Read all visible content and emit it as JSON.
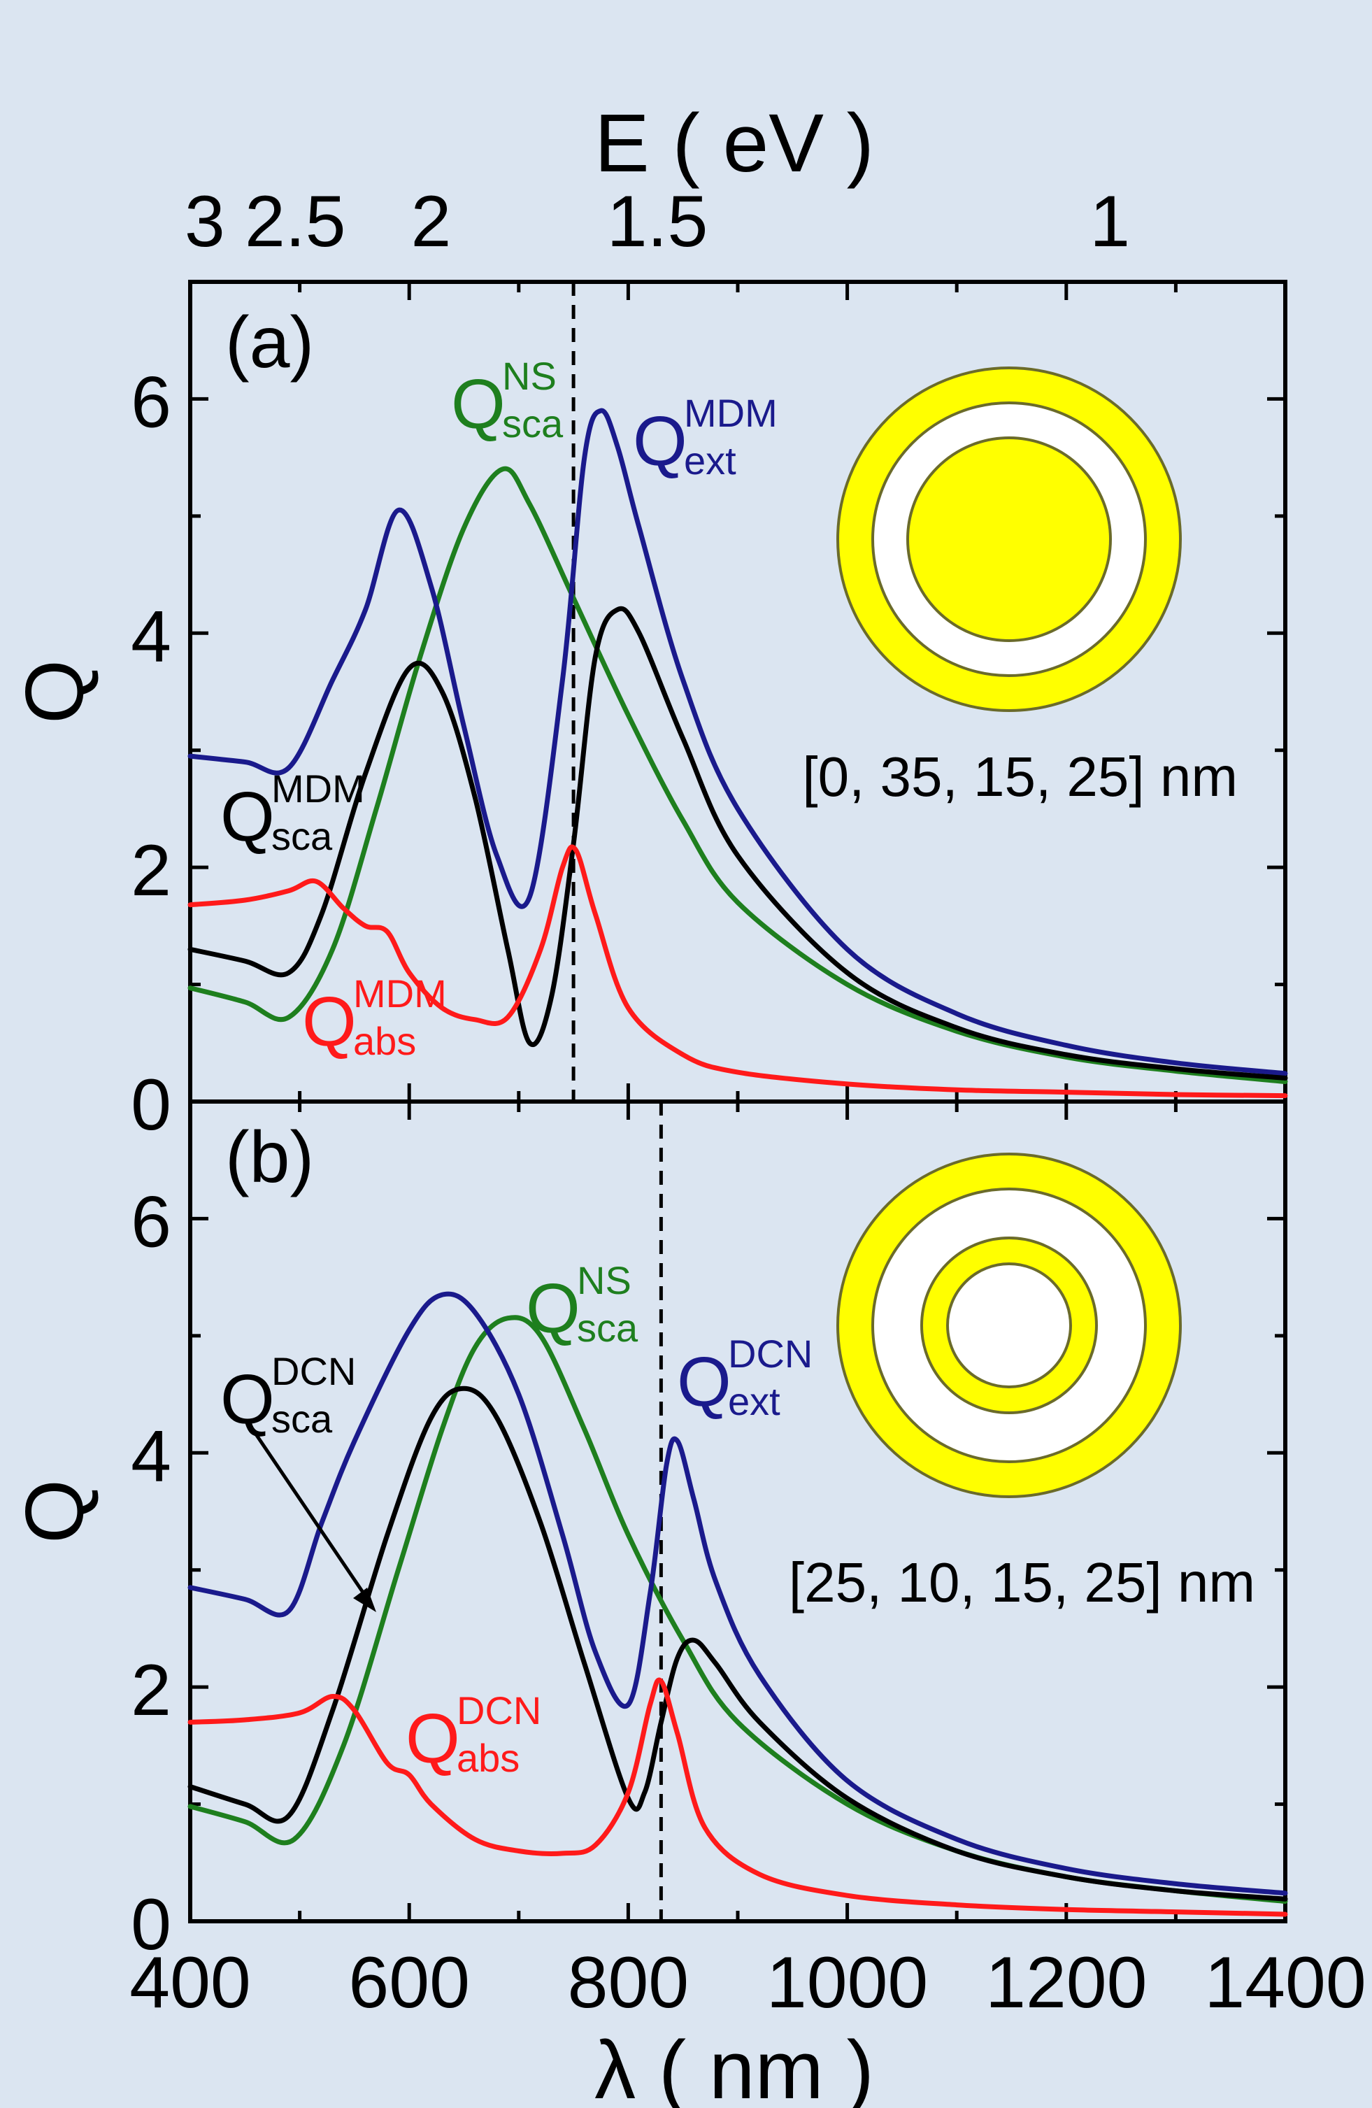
{
  "colors": {
    "background": "#dbe5f1",
    "ext": "#1a1a8c",
    "sca": "#000000",
    "ns": "#1e7f1e",
    "abs": "#ff1a1a",
    "gold": "#ffff00",
    "outline": "#6b6b2a"
  },
  "top_axis": {
    "title": "E ( eV )",
    "ticks": [
      {
        "label": "3",
        "value": 3
      },
      {
        "label": "2.5",
        "value": 2.5
      },
      {
        "label": "2",
        "value": 2
      },
      {
        "label": "1.5",
        "value": 1.5
      },
      {
        "label": "1",
        "value": 1
      }
    ]
  },
  "chart_data": [
    {
      "type": "line",
      "panel_label": "(a)",
      "ylabel": "Q",
      "xlim": [
        400,
        1400
      ],
      "ylim": [
        0,
        7
      ],
      "y_ticks": [
        0,
        2,
        4,
        6
      ],
      "vline": 750,
      "structure": "[0, 35, 15, 25] nm",
      "series": [
        {
          "key": "ext",
          "base": "Q",
          "sup": "MDM",
          "sub": "ext",
          "x": [
            400,
            450,
            490,
            530,
            560,
            590,
            620,
            650,
            680,
            710,
            740,
            760,
            775,
            790,
            810,
            850,
            900,
            1000,
            1100,
            1200,
            1300,
            1400
          ],
          "values": [
            2.95,
            2.9,
            2.85,
            3.6,
            4.2,
            5.05,
            4.4,
            3.2,
            2.1,
            1.75,
            3.6,
            5.5,
            5.9,
            5.6,
            4.9,
            3.6,
            2.5,
            1.3,
            0.75,
            0.48,
            0.33,
            0.24
          ]
        },
        {
          "key": "sca",
          "base": "Q",
          "sup": "MDM",
          "sub": "sca",
          "x": [
            400,
            450,
            490,
            520,
            560,
            600,
            630,
            660,
            690,
            710,
            730,
            750,
            770,
            790,
            810,
            850,
            900,
            1000,
            1100,
            1200,
            1300,
            1400
          ],
          "values": [
            1.3,
            1.2,
            1.1,
            1.6,
            2.8,
            3.7,
            3.5,
            2.6,
            1.3,
            0.5,
            0.9,
            2.2,
            3.8,
            4.2,
            4.0,
            3.1,
            2.1,
            1.1,
            0.63,
            0.4,
            0.28,
            0.2
          ]
        },
        {
          "key": "ns",
          "base": "Q",
          "sup": "NS",
          "sub": "sca",
          "x": [
            400,
            450,
            490,
            530,
            570,
            610,
            650,
            685,
            710,
            750,
            800,
            850,
            900,
            1000,
            1100,
            1200,
            1300,
            1400
          ],
          "values": [
            0.97,
            0.85,
            0.72,
            1.3,
            2.5,
            3.8,
            4.9,
            5.4,
            5.1,
            4.3,
            3.3,
            2.4,
            1.7,
            1.0,
            0.6,
            0.38,
            0.26,
            0.17
          ]
        },
        {
          "key": "abs",
          "base": "Q",
          "sup": "MDM",
          "sub": "abs",
          "x": [
            400,
            450,
            490,
            515,
            540,
            560,
            580,
            600,
            630,
            660,
            690,
            720,
            740,
            752,
            770,
            800,
            850,
            900,
            1000,
            1100,
            1200,
            1300,
            1400
          ],
          "values": [
            1.68,
            1.72,
            1.8,
            1.88,
            1.65,
            1.5,
            1.45,
            1.1,
            0.8,
            0.7,
            0.72,
            1.3,
            2.0,
            2.15,
            1.6,
            0.8,
            0.4,
            0.25,
            0.15,
            0.1,
            0.08,
            0.06,
            0.05
          ]
        }
      ]
    },
    {
      "type": "line",
      "panel_label": "(b)",
      "ylabel": "Q",
      "xlim": [
        400,
        1400
      ],
      "ylim": [
        0,
        7
      ],
      "y_ticks": [
        0,
        2,
        4,
        6
      ],
      "vline": 830,
      "structure": "[25, 10, 15, 25] nm",
      "series": [
        {
          "key": "ext",
          "base": "Q",
          "sup": "DCN",
          "sub": "ext",
          "x": [
            400,
            450,
            490,
            520,
            550,
            600,
            630,
            660,
            700,
            740,
            770,
            800,
            820,
            835,
            845,
            860,
            880,
            920,
            1000,
            1100,
            1200,
            1300,
            1400
          ],
          "values": [
            2.85,
            2.75,
            2.65,
            3.4,
            4.1,
            5.05,
            5.35,
            5.2,
            4.5,
            3.3,
            2.3,
            1.85,
            2.8,
            3.9,
            4.1,
            3.6,
            2.9,
            2.1,
            1.2,
            0.7,
            0.45,
            0.32,
            0.24
          ]
        },
        {
          "key": "sca",
          "base": "Q",
          "sup": "DCN",
          "sub": "sca",
          "x": [
            400,
            450,
            490,
            530,
            580,
            620,
            650,
            680,
            720,
            760,
            800,
            815,
            830,
            845,
            860,
            880,
            920,
            1000,
            1100,
            1200,
            1300,
            1400
          ],
          "values": [
            1.15,
            1.0,
            0.9,
            1.8,
            3.3,
            4.3,
            4.55,
            4.3,
            3.4,
            2.2,
            1.05,
            1.1,
            1.7,
            2.25,
            2.4,
            2.2,
            1.7,
            1.05,
            0.6,
            0.38,
            0.26,
            0.19
          ]
        },
        {
          "key": "ns",
          "base": "Q",
          "sup": "NS",
          "sub": "sca",
          "x": [
            400,
            450,
            495,
            540,
            590,
            630,
            660,
            690,
            720,
            760,
            800,
            850,
            900,
            1000,
            1100,
            1200,
            1300,
            1400
          ],
          "values": [
            0.98,
            0.85,
            0.7,
            1.5,
            3.0,
            4.2,
            4.9,
            5.15,
            5.0,
            4.2,
            3.3,
            2.4,
            1.7,
            1.0,
            0.6,
            0.38,
            0.26,
            0.17
          ]
        },
        {
          "key": "abs",
          "base": "Q",
          "sup": "DCN",
          "sub": "abs",
          "x": [
            400,
            450,
            500,
            530,
            550,
            580,
            600,
            620,
            660,
            700,
            740,
            770,
            800,
            820,
            830,
            845,
            870,
            920,
            1000,
            1100,
            1200,
            1300,
            1400
          ],
          "values": [
            1.7,
            1.72,
            1.78,
            1.92,
            1.8,
            1.35,
            1.25,
            1.0,
            0.7,
            0.6,
            0.58,
            0.65,
            1.1,
            1.85,
            2.05,
            1.6,
            0.8,
            0.4,
            0.22,
            0.14,
            0.1,
            0.08,
            0.06
          ]
        }
      ]
    }
  ],
  "x_axis": {
    "label": "λ ( nm )",
    "ticks": [
      400,
      600,
      800,
      1000,
      1200,
      1400
    ],
    "tick_labels": [
      "400",
      "600",
      "800",
      "1000",
      "1200",
      "1400"
    ]
  }
}
